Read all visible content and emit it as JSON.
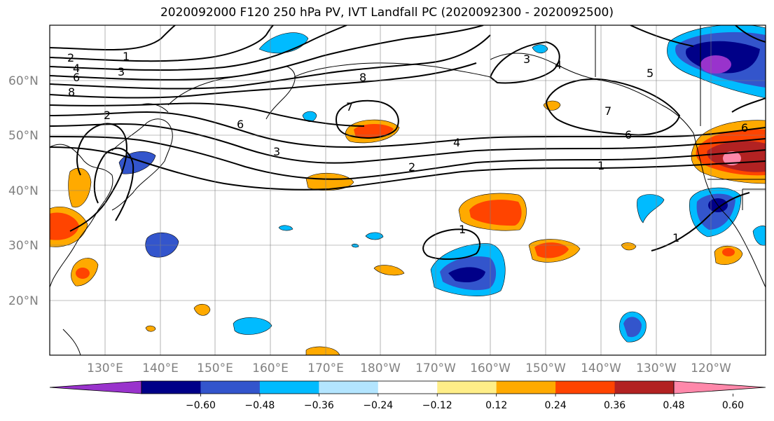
{
  "title": "2020092000 F120 250 hPa PV, IVT Landfall PC (2020092300 - 2020092500)",
  "lat_labels": [
    "60°N",
    "50°N",
    "40°N",
    "30°N",
    "20°N"
  ],
  "lon_labels": [
    "130°E",
    "140°E",
    "150°E",
    "160°E",
    "170°E",
    "180°W",
    "170°W",
    "160°W",
    "150°W",
    "140°W",
    "130°W",
    "120°W"
  ],
  "colorbar": {
    "ticks": [
      "−0.60",
      "−0.48",
      "−0.36",
      "−0.24",
      "−0.12",
      "0.12",
      "0.24",
      "0.36",
      "0.48",
      "0.60"
    ],
    "colors": [
      "#9933cc",
      "#000088",
      "#3355cc",
      "#00bbff",
      "#b3e5ff",
      "#ffffff",
      "#ffee88",
      "#ffaa00",
      "#ff4400",
      "#b22222",
      "#ff88aa"
    ]
  },
  "contour_labels": [
    "1",
    "2",
    "3",
    "4",
    "5",
    "6",
    "7",
    "8"
  ]
}
